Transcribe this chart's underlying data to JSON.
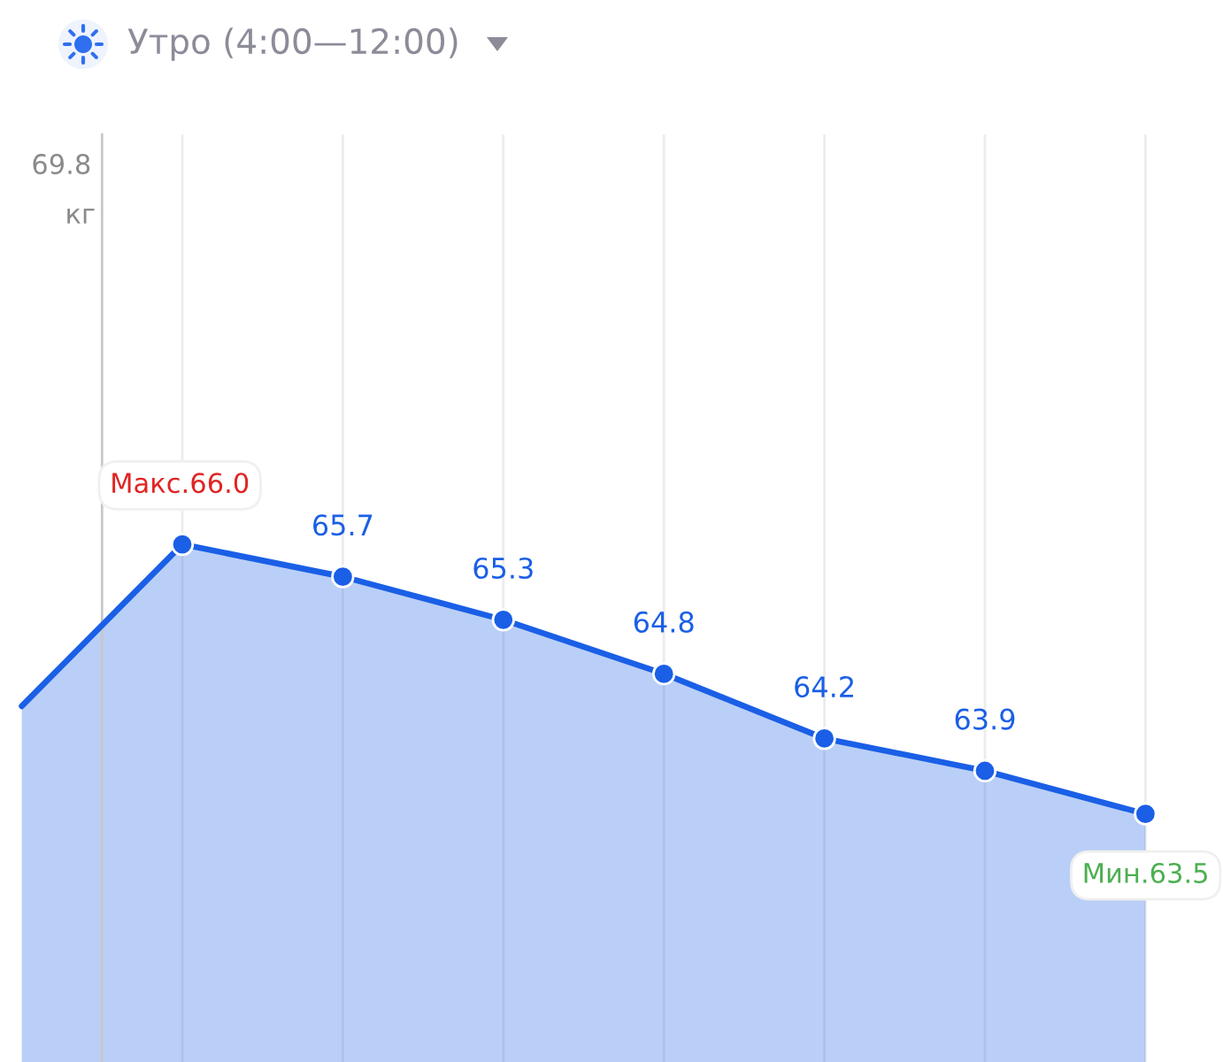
{
  "chart_data": {
    "type": "area",
    "title": "Утро (4:00—12:00)",
    "ylabel": "кг",
    "categories": [
      null,
      null,
      null,
      null,
      null,
      null,
      null,
      null
    ],
    "series": [
      {
        "color": "#1a5fe6",
        "values": [
          64.5,
          66.0,
          65.7,
          65.3,
          64.8,
          64.2,
          63.9,
          63.5
        ],
        "value_labels": [
          null,
          "Макс.66.0",
          "65.7",
          "65.3",
          "64.8",
          "64.2",
          "63.9",
          "Мин.63.5"
        ]
      }
    ],
    "ylim": [
      61.2,
      69.8
    ],
    "annotations": [
      "69.8"
    ],
    "grid": "x",
    "marker": "circle"
  }
}
